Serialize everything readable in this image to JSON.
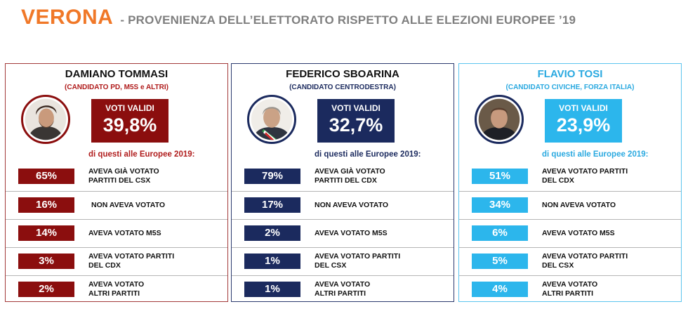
{
  "header": {
    "city": "VERONA",
    "subtitle": "- PROVENIENZA DELL’ELETTORATO RISPETTO ALLE ELEZIONI EUROPEE ’19"
  },
  "labels": {
    "valid_votes": "VOTI VALIDI",
    "europe_2019": "di questi alle Europee 2019:"
  },
  "colors": {
    "tommasi": "#8b0e0e",
    "sboarina": "#1b2a5e",
    "tosi": "#2cb6ec",
    "tommasi_text": "#b01c1c",
    "sboarina_text": "#1b2a5e",
    "tosi_text": "#2aa9e0",
    "title_orange": "#f07828",
    "title_gray": "#7f7f7f"
  },
  "chart_data": {
    "type": "table",
    "title": "VERONA - PROVENIENZA DELL’ELETTORATO RISPETTO ALLE ELEZIONI EUROPEE ’19",
    "candidates": [
      {
        "name": "DAMIANO TOMMASI",
        "party": "(CANDIDATO PD, M5S  e ALTRI)",
        "valid_votes": "39,8%",
        "valid_votes_value": 39.8,
        "rows": [
          {
            "pct": "65%",
            "value": 65,
            "text": "AVEVA GIÀ VOTATO\nPARTITI DEL CSX"
          },
          {
            "pct": "16%",
            "value": 16,
            "text": "NON AVEVA VOTATO"
          },
          {
            "pct": "14%",
            "value": 14,
            "text": "AVEVA VOTATO M5S"
          },
          {
            "pct": "3%",
            "value": 3,
            "text": "AVEVA VOTATO PARTITI\nDEL CDX"
          },
          {
            "pct": "2%",
            "value": 2,
            "text": "AVEVA VOTATO\nALTRI PARTITI"
          }
        ]
      },
      {
        "name": "FEDERICO SBOARINA",
        "party": "(CANDIDATO CENTRODESTRA)",
        "valid_votes": "32,7%",
        "valid_votes_value": 32.7,
        "rows": [
          {
            "pct": "79%",
            "value": 79,
            "text": "AVEVA GIÀ VOTATO\nPARTITI DEL CDX"
          },
          {
            "pct": "17%",
            "value": 17,
            "text": "NON AVEVA VOTATO"
          },
          {
            "pct": "2%",
            "value": 2,
            "text": "AVEVA VOTATO M5S"
          },
          {
            "pct": "1%",
            "value": 1,
            "text": "AVEVA VOTATO PARTITI\nDEL CSX"
          },
          {
            "pct": "1%",
            "value": 1,
            "text": "AVEVA VOTATO\nALTRI PARTITI"
          }
        ]
      },
      {
        "name": "FLAVIO TOSI",
        "party": "(CANDIDATO CIVICHE, FORZA ITALIA)",
        "valid_votes": "23,9%",
        "valid_votes_value": 23.9,
        "rows": [
          {
            "pct": "51%",
            "value": 51,
            "text": "AVEVA VOTATO PARTITI\nDEL CDX"
          },
          {
            "pct": "34%",
            "value": 34,
            "text": "NON AVEVA VOTATO"
          },
          {
            "pct": "6%",
            "value": 6,
            "text": "AVEVA VOTATO M5S"
          },
          {
            "pct": "5%",
            "value": 5,
            "text": "AVEVA VOTATO PARTITI\nDEL CSX"
          },
          {
            "pct": "4%",
            "value": 4,
            "text": "AVEVA VOTATO\nALTRI PARTITI"
          }
        ]
      }
    ]
  }
}
